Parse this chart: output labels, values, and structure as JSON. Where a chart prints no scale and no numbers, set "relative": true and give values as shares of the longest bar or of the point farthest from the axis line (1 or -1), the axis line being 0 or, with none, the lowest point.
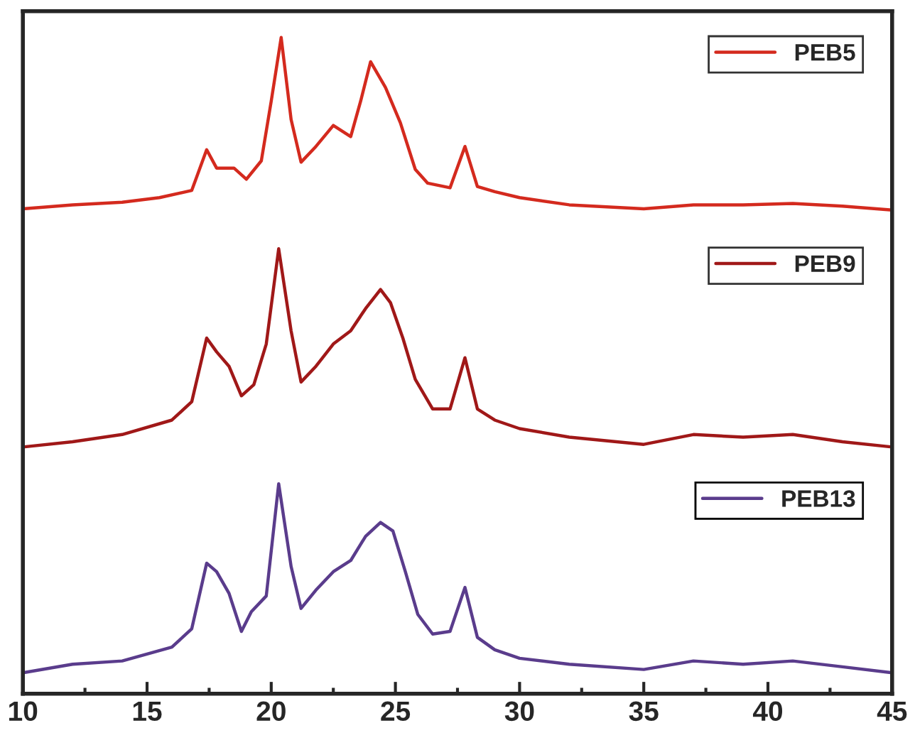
{
  "chart_data": {
    "type": "line",
    "relative": true,
    "xlim": [
      10,
      45
    ],
    "xticks": [
      10,
      15,
      20,
      25,
      30,
      35,
      40,
      45
    ],
    "legend": "right",
    "grid": false,
    "marker": "none",
    "line_style": "solid",
    "tick_labels": "x",
    "x": [
      10,
      12,
      14,
      15.5,
      16.8,
      17.4,
      17.8,
      18.5,
      19,
      19.6,
      20,
      20.4,
      20.8,
      21.2,
      21.8,
      22.5,
      23.2,
      23.6,
      24,
      24.6,
      25.2,
      25.8,
      26.3,
      27.2,
      27.8,
      28.3,
      29,
      30,
      32,
      35,
      37,
      39,
      41,
      43,
      45
    ],
    "series": [
      {
        "name": "PEB5",
        "color": "#d42a1e",
        "values": [
          0.739,
          0.745,
          0.749,
          0.756,
          0.767,
          0.829,
          0.801,
          0.801,
          0.784,
          0.812,
          0.903,
          1.0,
          0.875,
          0.81,
          0.834,
          0.866,
          0.849,
          0.903,
          0.963,
          0.924,
          0.87,
          0.799,
          0.778,
          0.771,
          0.834,
          0.773,
          0.765,
          0.756,
          0.745,
          0.739,
          0.745,
          0.745,
          0.747,
          0.743,
          0.737
        ]
      },
      {
        "name": "PEB9",
        "color": "#a01818",
        "x": [
          10,
          12,
          14,
          16,
          16.8,
          17.4,
          17.8,
          18.3,
          18.8,
          19.3,
          19.8,
          20.3,
          20.8,
          21.2,
          21.8,
          22.5,
          23.2,
          23.8,
          24.4,
          24.8,
          25.3,
          25.8,
          26.5,
          27.2,
          27.8,
          28.3,
          29,
          30,
          32,
          35,
          37,
          39,
          41,
          43,
          45
        ],
        "values": [
          0.376,
          0.384,
          0.395,
          0.417,
          0.445,
          0.542,
          0.521,
          0.499,
          0.454,
          0.471,
          0.533,
          0.678,
          0.553,
          0.475,
          0.499,
          0.533,
          0.553,
          0.587,
          0.616,
          0.596,
          0.542,
          0.479,
          0.434,
          0.434,
          0.512,
          0.434,
          0.417,
          0.404,
          0.391,
          0.38,
          0.395,
          0.391,
          0.395,
          0.384,
          0.376
        ]
      },
      {
        "name": "PEB13",
        "color": "#5a3c8c",
        "x": [
          10,
          12,
          14,
          16,
          16.8,
          17.4,
          17.8,
          18.3,
          18.8,
          19.2,
          19.8,
          20.3,
          20.8,
          21.2,
          21.8,
          22.5,
          23.2,
          23.8,
          24.4,
          24.9,
          25.4,
          25.9,
          26.5,
          27.2,
          27.8,
          28.3,
          29,
          30,
          32,
          35,
          37,
          39,
          41,
          43,
          45
        ],
        "values": [
          0.032,
          0.045,
          0.05,
          0.071,
          0.099,
          0.199,
          0.186,
          0.153,
          0.095,
          0.125,
          0.149,
          0.32,
          0.194,
          0.13,
          0.158,
          0.186,
          0.203,
          0.24,
          0.261,
          0.248,
          0.186,
          0.121,
          0.091,
          0.095,
          0.162,
          0.086,
          0.067,
          0.054,
          0.045,
          0.037,
          0.05,
          0.045,
          0.05,
          0.041,
          0.032
        ]
      }
    ]
  }
}
